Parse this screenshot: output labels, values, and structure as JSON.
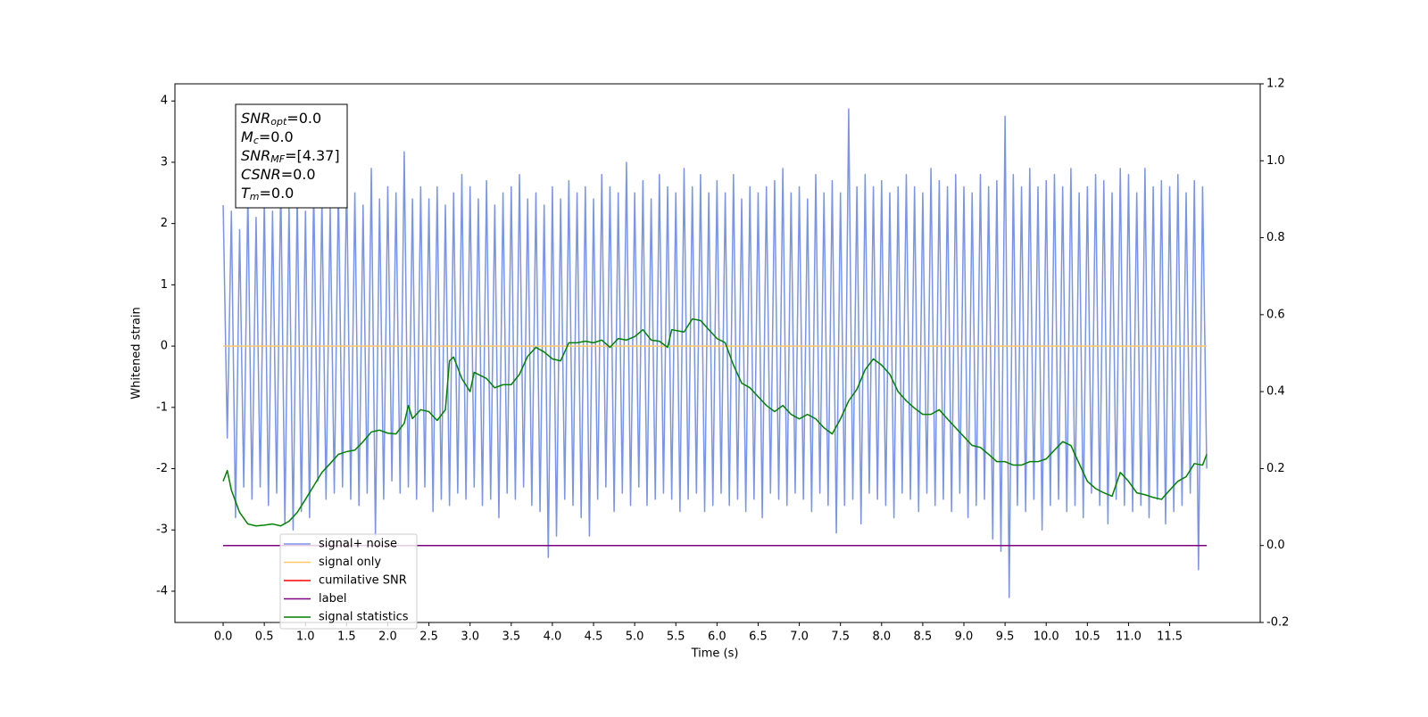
{
  "chart_data": {
    "type": "line",
    "xlabel": "Time (s)",
    "ylabel": "Whitened strain",
    "xlim": [
      -0.586,
      12.6
    ],
    "ylim": [
      -4.51,
      4.28
    ],
    "y2lim": [
      -0.2,
      1.2
    ],
    "xticks": [
      {
        "value": 0,
        "label": "0.0"
      },
      0.5,
      {
        "value": 1,
        "label": "1.0"
      },
      1.5,
      {
        "value": 2,
        "label": "2.0"
      },
      2.5,
      {
        "value": 3,
        "label": "3.0"
      },
      3.5,
      {
        "value": 4,
        "label": "4.0"
      },
      4.5,
      {
        "value": 5,
        "label": "5.0"
      },
      5.5,
      {
        "value": 6,
        "label": "6.0"
      },
      6.5,
      {
        "value": 7,
        "label": "7.0"
      },
      7.5,
      {
        "value": 8,
        "label": "8.0"
      },
      8.5,
      {
        "value": 9,
        "label": "9.0"
      },
      9.5,
      {
        "value": 10,
        "label": "10.0"
      },
      10.5,
      {
        "value": 11,
        "label": "11.0"
      },
      11.5
    ],
    "yticks": [
      -4,
      -3,
      -2,
      -1,
      0,
      1,
      2,
      3,
      4
    ],
    "y2ticks": [
      -0.2,
      {
        "value": 0,
        "label": "0.0"
      },
      0.2,
      0.4,
      0.6,
      0.8,
      {
        "value": 1,
        "label": "1.0"
      },
      1.2
    ],
    "legend": "lower left",
    "annotation": [
      {
        "base": "SNR",
        "sub": "opt",
        "text": "=0.0"
      },
      {
        "base": "M",
        "sub": "c",
        "text": "=0.0"
      },
      {
        "base": "SNR",
        "sub": "MF",
        "text": "=[4.37]"
      },
      {
        "base": "CSNR",
        "sub": null,
        "text": "=0.0"
      },
      {
        "base": "T",
        "sub": "m",
        "text": "=0.0"
      }
    ],
    "series": [
      {
        "name": "signal+ noise",
        "color": "#7994e8",
        "axis": "y",
        "x": [
          0,
          0.05,
          0.1,
          0.15,
          0.2,
          0.25,
          0.3,
          0.35,
          0.4,
          0.45,
          0.5,
          0.55,
          0.6,
          0.65,
          0.7,
          0.75,
          0.8,
          0.85,
          0.9,
          0.95,
          1,
          1.05,
          1.1,
          1.15,
          1.2,
          1.25,
          1.3,
          1.35,
          1.4,
          1.45,
          1.5,
          1.55,
          1.6,
          1.65,
          1.7,
          1.75,
          1.8,
          1.85,
          1.9,
          1.95,
          2,
          2.05,
          2.1,
          2.15,
          2.2,
          2.25,
          2.3,
          2.35,
          2.4,
          2.45,
          2.5,
          2.55,
          2.6,
          2.65,
          2.7,
          2.75,
          2.8,
          2.85,
          2.9,
          2.95,
          3,
          3.05,
          3.1,
          3.15,
          3.2,
          3.25,
          3.3,
          3.35,
          3.4,
          3.45,
          3.5,
          3.55,
          3.6,
          3.65,
          3.7,
          3.75,
          3.8,
          3.85,
          3.9,
          3.95,
          4,
          4.05,
          4.1,
          4.15,
          4.2,
          4.25,
          4.3,
          4.35,
          4.4,
          4.45,
          4.5,
          4.55,
          4.6,
          4.65,
          4.7,
          4.75,
          4.8,
          4.85,
          4.9,
          4.95,
          5,
          5.05,
          5.1,
          5.15,
          5.2,
          5.25,
          5.3,
          5.35,
          5.4,
          5.45,
          5.5,
          5.55,
          5.6,
          5.65,
          5.7,
          5.75,
          5.8,
          5.85,
          5.9,
          5.95,
          6,
          6.05,
          6.1,
          6.15,
          6.2,
          6.25,
          6.3,
          6.35,
          6.4,
          6.45,
          6.5,
          6.55,
          6.6,
          6.65,
          6.7,
          6.75,
          6.8,
          6.85,
          6.9,
          6.95,
          7,
          7.05,
          7.1,
          7.15,
          7.2,
          7.25,
          7.3,
          7.35,
          7.4,
          7.45,
          7.5,
          7.55,
          7.6,
          7.65,
          7.7,
          7.75,
          7.8,
          7.85,
          7.9,
          7.95,
          8,
          8.05,
          8.1,
          8.15,
          8.2,
          8.25,
          8.3,
          8.35,
          8.4,
          8.45,
          8.5,
          8.55,
          8.6,
          8.65,
          8.7,
          8.75,
          8.8,
          8.85,
          8.9,
          8.95,
          9,
          9.05,
          9.1,
          9.15,
          9.2,
          9.25,
          9.3,
          9.35,
          9.4,
          9.45,
          9.5,
          9.55,
          9.6,
          9.65,
          9.7,
          9.75,
          9.8,
          9.85,
          9.9,
          9.95,
          10,
          10.05,
          10.1,
          10.15,
          10.2,
          10.25,
          10.3,
          10.35,
          10.4,
          10.45,
          10.5,
          10.55,
          10.6,
          10.65,
          10.7,
          10.75,
          10.8,
          10.85,
          10.9,
          10.95,
          11,
          11.05,
          11.1,
          11.15,
          11.2,
          11.25,
          11.3,
          11.35,
          11.4,
          11.45,
          11.5,
          11.55,
          11.6,
          11.65,
          11.7,
          11.75,
          11.8,
          11.85,
          11.9,
          11.95
        ],
        "values": [
          2.3,
          -1.5,
          2.2,
          -2.8,
          1.9,
          -2.3,
          2.5,
          -2.5,
          2.1,
          -2.3,
          2.4,
          -2.6,
          2.2,
          -2.4,
          2.7,
          -2.9,
          2.3,
          -3.0,
          2.5,
          -2.7,
          2.2,
          -2.8,
          2.6,
          -2.2,
          2.4,
          -2.5,
          2.3,
          -2.4,
          2.6,
          -2.3,
          2.8,
          -2.5,
          2.5,
          -2.6,
          2.3,
          -2.4,
          2.9,
          -3.1,
          2.4,
          -2.5,
          2.6,
          -2.2,
          2.5,
          -2.4,
          3.17,
          -2.3,
          2.4,
          -2.5,
          2.6,
          -2.3,
          2.4,
          -2.7,
          2.6,
          -2.5,
          2.3,
          -2.6,
          2.5,
          -2.4,
          2.8,
          -2.5,
          2.6,
          -2.3,
          2.4,
          -2.6,
          2.7,
          -2.5,
          2.3,
          -2.8,
          2.5,
          -2.4,
          2.6,
          -2.5,
          2.8,
          -2.3,
          2.4,
          -2.6,
          2.5,
          -2.7,
          2.3,
          -3.45,
          2.6,
          -3.1,
          2.4,
          -2.5,
          2.7,
          -2.6,
          2.5,
          -2.8,
          2.6,
          -3.1,
          2.4,
          -2.5,
          2.8,
          -2.3,
          2.6,
          -2.7,
          2.5,
          -2.4,
          3.0,
          -2.6,
          2.5,
          -2.3,
          2.7,
          -2.6,
          2.4,
          -2.5,
          2.8,
          -2.4,
          2.6,
          -2.5,
          2.5,
          -2.7,
          2.9,
          -2.5,
          2.6,
          -2.4,
          2.8,
          -2.7,
          2.5,
          -2.6,
          2.7,
          -2.4,
          2.5,
          -2.6,
          2.8,
          -2.5,
          2.4,
          -2.7,
          2.6,
          -2.5,
          2.5,
          -2.8,
          2.6,
          -2.4,
          2.7,
          -2.5,
          2.9,
          -2.6,
          2.5,
          -2.4,
          2.6,
          -2.5,
          2.4,
          -2.7,
          2.8,
          -2.4,
          2.5,
          -2.6,
          2.7,
          -3.05,
          2.5,
          -2.6,
          3.87,
          -2.5,
          2.6,
          -2.9,
          2.8,
          -2.4,
          2.6,
          -2.5,
          2.7,
          -2.6,
          2.5,
          -2.8,
          2.6,
          -2.4,
          2.8,
          -2.5,
          2.6,
          -2.7,
          2.5,
          -2.4,
          2.9,
          -2.6,
          2.7,
          -2.5,
          2.6,
          -2.7,
          2.8,
          -2.4,
          2.6,
          -2.8,
          2.5,
          -2.6,
          2.8,
          -2.5,
          2.6,
          -3.15,
          2.7,
          -3.35,
          3.75,
          -4.1,
          2.8,
          -2.6,
          2.6,
          -2.7,
          2.9,
          -2.5,
          2.6,
          -3.0,
          2.7,
          -2.6,
          2.8,
          -2.5,
          2.6,
          -2.7,
          2.9,
          -2.6,
          2.5,
          -2.8,
          2.6,
          -2.4,
          2.8,
          -2.6,
          2.7,
          -2.9,
          2.5,
          -2.5,
          2.9,
          -2.6,
          2.8,
          -2.7,
          2.5,
          -2.6,
          2.9,
          -2.8,
          2.6,
          -2.5,
          2.7,
          -2.9,
          2.6,
          -2.7,
          2.8,
          -2.6,
          2.5,
          -2.4,
          2.7,
          -3.65,
          2.6,
          -2.0
        ]
      },
      {
        "name": "signal only",
        "color": "#ffc66e",
        "axis": "y",
        "x": [
          0,
          11.95
        ],
        "values": [
          0,
          0
        ]
      },
      {
        "name": "cumilative SNR",
        "color": "#ff0000",
        "axis": "y2",
        "x": [
          0,
          11.95
        ],
        "values": [
          0,
          0
        ]
      },
      {
        "name": "label",
        "color": "#800080",
        "axis": "y2",
        "x": [
          0,
          11.95
        ],
        "values": [
          0,
          0
        ]
      },
      {
        "name": "signal statistics",
        "color": "#008000",
        "axis": "y2",
        "x": [
          0,
          0.05,
          0.1,
          0.2,
          0.3,
          0.4,
          0.5,
          0.6,
          0.7,
          0.8,
          0.9,
          1.0,
          1.1,
          1.2,
          1.3,
          1.4,
          1.5,
          1.6,
          1.7,
          1.8,
          1.9,
          2.0,
          2.1,
          2.2,
          2.25,
          2.3,
          2.4,
          2.5,
          2.6,
          2.7,
          2.75,
          2.8,
          2.9,
          3.0,
          3.05,
          3.2,
          3.3,
          3.4,
          3.5,
          3.6,
          3.7,
          3.8,
          3.9,
          4.0,
          4.1,
          4.2,
          4.3,
          4.4,
          4.5,
          4.6,
          4.7,
          4.8,
          4.9,
          5.0,
          5.1,
          5.2,
          5.3,
          5.4,
          5.45,
          5.6,
          5.7,
          5.8,
          5.9,
          6.0,
          6.1,
          6.2,
          6.3,
          6.4,
          6.5,
          6.6,
          6.7,
          6.8,
          6.9,
          7.0,
          7.1,
          7.2,
          7.3,
          7.4,
          7.5,
          7.6,
          7.7,
          7.8,
          7.9,
          8.0,
          8.1,
          8.2,
          8.3,
          8.4,
          8.5,
          8.6,
          8.7,
          8.8,
          8.9,
          9.0,
          9.1,
          9.2,
          9.3,
          9.4,
          9.5,
          9.6,
          9.7,
          9.8,
          9.9,
          10.0,
          10.1,
          10.2,
          10.3,
          10.4,
          10.5,
          10.6,
          10.7,
          10.8,
          10.9,
          11.0,
          11.1,
          11.2,
          11.3,
          11.4,
          11.5,
          11.6,
          11.7,
          11.8,
          11.9,
          11.95
        ],
        "values": [
          0.167,
          0.195,
          0.144,
          0.086,
          0.056,
          0.051,
          0.053,
          0.056,
          0.051,
          0.063,
          0.086,
          0.12,
          0.155,
          0.19,
          0.213,
          0.237,
          0.244,
          0.248,
          0.27,
          0.295,
          0.3,
          0.292,
          0.29,
          0.318,
          0.364,
          0.33,
          0.353,
          0.348,
          0.325,
          0.353,
          0.48,
          0.49,
          0.434,
          0.4,
          0.45,
          0.434,
          0.41,
          0.418,
          0.418,
          0.445,
          0.492,
          0.515,
          0.503,
          0.485,
          0.48,
          0.527,
          0.527,
          0.531,
          0.527,
          0.534,
          0.515,
          0.538,
          0.534,
          0.543,
          0.561,
          0.534,
          0.531,
          0.515,
          0.561,
          0.555,
          0.589,
          0.585,
          0.561,
          0.538,
          0.527,
          0.469,
          0.422,
          0.41,
          0.387,
          0.364,
          0.348,
          0.364,
          0.341,
          0.329,
          0.341,
          0.329,
          0.306,
          0.29,
          0.329,
          0.376,
          0.406,
          0.457,
          0.485,
          0.469,
          0.445,
          0.4,
          0.376,
          0.357,
          0.341,
          0.341,
          0.353,
          0.329,
          0.306,
          0.283,
          0.26,
          0.255,
          0.237,
          0.218,
          0.218,
          0.209,
          0.209,
          0.218,
          0.218,
          0.225,
          0.248,
          0.27,
          0.26,
          0.213,
          0.167,
          0.148,
          0.137,
          0.128,
          0.19,
          0.167,
          0.137,
          0.132,
          0.125,
          0.12,
          0.144,
          0.167,
          0.179,
          0.213,
          0.209,
          0.237
        ]
      }
    ]
  }
}
